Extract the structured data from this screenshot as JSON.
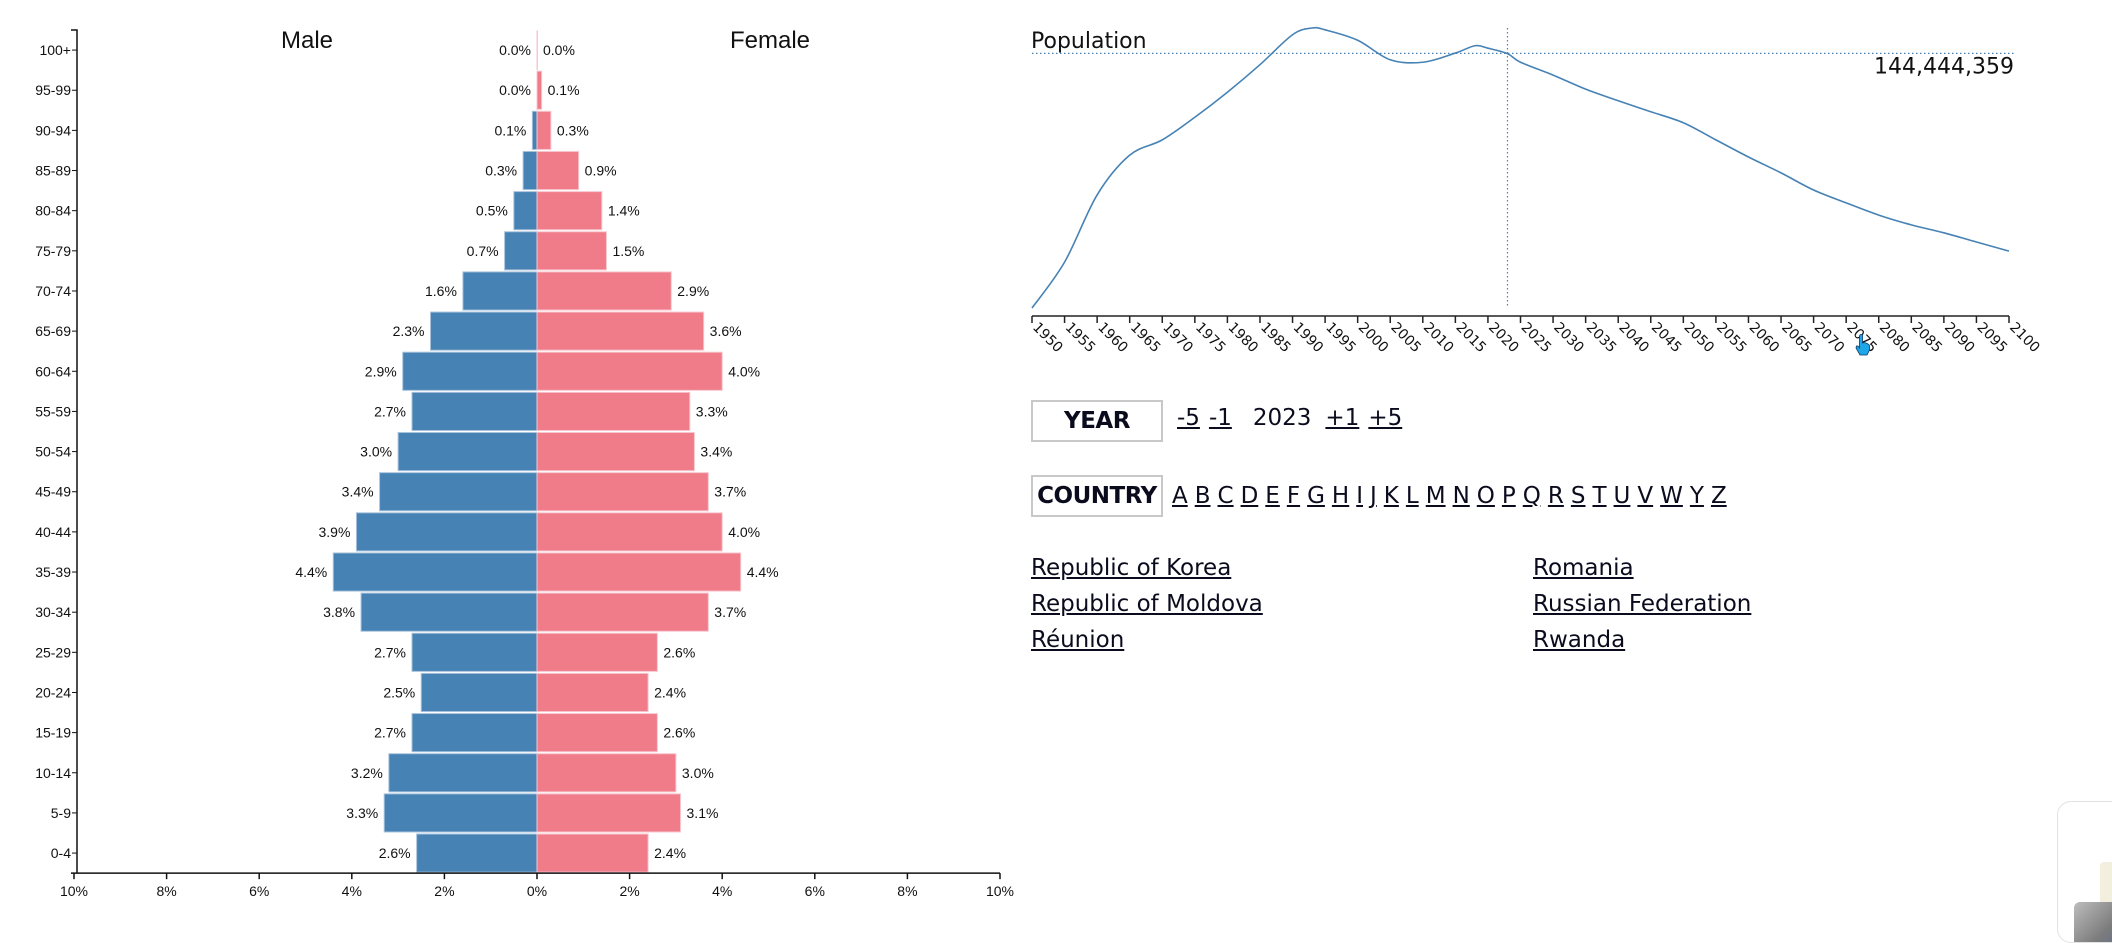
{
  "chart_data": [
    {
      "type": "bar",
      "subtype": "population-pyramid",
      "orientation": "horizontal",
      "categories": [
        "100+",
        "95-99",
        "90-94",
        "85-89",
        "80-84",
        "75-79",
        "70-74",
        "65-69",
        "60-64",
        "55-59",
        "50-54",
        "45-49",
        "40-44",
        "35-39",
        "30-34",
        "25-29",
        "20-24",
        "15-19",
        "10-14",
        "5-9",
        "0-4"
      ],
      "series": [
        {
          "name": "Male",
          "color": "#4682b4",
          "values": [
            0.0,
            0.0,
            0.1,
            0.3,
            0.5,
            0.7,
            1.6,
            2.3,
            2.9,
            2.7,
            3.0,
            3.4,
            3.9,
            4.4,
            3.8,
            2.7,
            2.5,
            2.7,
            3.2,
            3.3,
            2.6
          ],
          "labels": [
            "0.0%",
            "0.0%",
            "0.1%",
            "0.3%",
            "0.5%",
            "0.7%",
            "1.6%",
            "2.3%",
            "2.9%",
            "2.7%",
            "3.0%",
            "3.4%",
            "3.9%",
            "4.4%",
            "3.8%",
            "2.7%",
            "2.5%",
            "2.7%",
            "3.2%",
            "3.3%",
            "2.6%"
          ]
        },
        {
          "name": "Female",
          "color": "#f07b89",
          "values": [
            0.0,
            0.1,
            0.3,
            0.9,
            1.4,
            1.5,
            2.9,
            3.6,
            4.0,
            3.3,
            3.4,
            3.7,
            4.0,
            4.4,
            3.7,
            2.6,
            2.4,
            2.6,
            3.0,
            3.1,
            2.4
          ],
          "labels": [
            "0.0%",
            "0.1%",
            "0.3%",
            "0.9%",
            "1.4%",
            "1.5%",
            "2.9%",
            "3.6%",
            "4.0%",
            "3.3%",
            "3.4%",
            "3.7%",
            "4.0%",
            "4.4%",
            "3.7%",
            "2.6%",
            "2.4%",
            "2.6%",
            "3.0%",
            "3.1%",
            "2.4%"
          ]
        }
      ],
      "titles": {
        "left": "Male",
        "right": "Female"
      },
      "xlim": [
        -10,
        10
      ],
      "xticks": [
        "10%",
        "8%",
        "6%",
        "4%",
        "2%",
        "0%",
        "2%",
        "4%",
        "6%",
        "8%",
        "10%"
      ],
      "xtick_values": [
        -10,
        -8,
        -6,
        -4,
        -2,
        0,
        2,
        4,
        6,
        8,
        10
      ],
      "grid": false
    },
    {
      "type": "line",
      "title": "Population",
      "color": "#4682b4",
      "x": [
        1950,
        1955,
        1960,
        1965,
        1970,
        1975,
        1980,
        1985,
        1990,
        1993,
        1995,
        2000,
        2005,
        2010,
        2015,
        2018,
        2020,
        2023,
        2025,
        2030,
        2035,
        2040,
        2045,
        2050,
        2055,
        2060,
        2065,
        2070,
        2075,
        2080,
        2085,
        2090,
        2095,
        2100
      ],
      "y": [
        102.8,
        110.3,
        121.3,
        127.8,
        130.3,
        134.0,
        138.1,
        142.6,
        147.5,
        148.6,
        148.3,
        146.6,
        143.4,
        143.0,
        144.5,
        145.7,
        145.3,
        144.4,
        143.0,
        140.9,
        138.6,
        136.7,
        134.9,
        133.1,
        130.3,
        127.5,
        124.9,
        122.1,
        120.0,
        118.0,
        116.4,
        115.1,
        113.6,
        112.1
      ],
      "y_units": "millions",
      "ylim": [
        102.8,
        148.6
      ],
      "xlim": [
        1950,
        2100
      ],
      "xticks": [
        "1950",
        "1955",
        "1960",
        "1965",
        "1970",
        "1975",
        "1980",
        "1985",
        "1990",
        "1995",
        "2000",
        "2005",
        "2010",
        "2015",
        "2020",
        "2025",
        "2030",
        "2035",
        "2040",
        "2045",
        "2050",
        "2055",
        "2060",
        "2065",
        "2070",
        "2075",
        "2080",
        "2085",
        "2090",
        "2095",
        "2100"
      ],
      "xtick_values": [
        1950,
        1955,
        1960,
        1965,
        1970,
        1975,
        1980,
        1985,
        1990,
        1995,
        2000,
        2005,
        2010,
        2015,
        2020,
        2025,
        2030,
        2035,
        2040,
        2045,
        2050,
        2055,
        2060,
        2065,
        2070,
        2075,
        2080,
        2085,
        2090,
        2095,
        2100
      ],
      "marker": {
        "year": 2023,
        "value": 144444359,
        "label": "144,444,359"
      },
      "grid": false
    }
  ],
  "controls": {
    "year_label": "YEAR",
    "year_steps": [
      "-5",
      "-1"
    ],
    "year_value": "2023",
    "year_steps_forward": [
      "+1",
      "+5"
    ],
    "country_label": "COUNTRY",
    "letters": [
      "A",
      "B",
      "C",
      "D",
      "E",
      "F",
      "G",
      "H",
      "I",
      "J",
      "K",
      "L",
      "M",
      "N",
      "O",
      "P",
      "Q",
      "R",
      "S",
      "T",
      "U",
      "V",
      "W",
      "Y",
      "Z"
    ]
  },
  "countries": [
    "Republic of Korea",
    "Republic of Moldova",
    "Réunion",
    "Romania",
    "Russian Federation",
    "Rwanda"
  ],
  "thumbnail": {
    "icon": "product-image-thumbnail"
  }
}
